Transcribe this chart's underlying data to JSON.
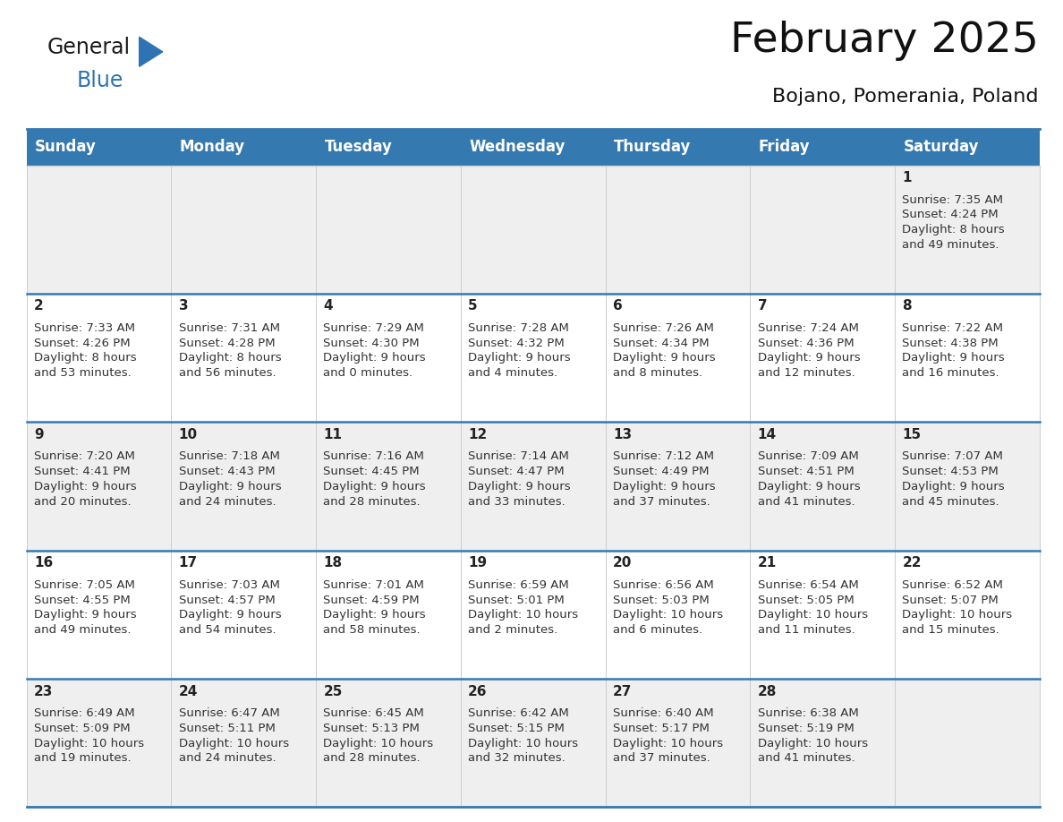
{
  "title": "February 2025",
  "subtitle": "Bojano, Pomerania, Poland",
  "days_of_week": [
    "Sunday",
    "Monday",
    "Tuesday",
    "Wednesday",
    "Thursday",
    "Friday",
    "Saturday"
  ],
  "header_bg": "#3579B1",
  "header_text_color": "#FFFFFF",
  "row_bg_odd": "#EFEFEF",
  "row_bg_even": "#FFFFFF",
  "cell_text_color": "#333333",
  "day_num_color": "#222222",
  "separator_color": "#3579B1",
  "calendar": [
    [
      null,
      null,
      null,
      null,
      null,
      null,
      {
        "day": "1",
        "sunrise": "7:35 AM",
        "sunset": "4:24 PM",
        "daylight_h": "8 hours",
        "daylight_m": "49 minutes."
      }
    ],
    [
      {
        "day": "2",
        "sunrise": "7:33 AM",
        "sunset": "4:26 PM",
        "daylight_h": "8 hours",
        "daylight_m": "53 minutes."
      },
      {
        "day": "3",
        "sunrise": "7:31 AM",
        "sunset": "4:28 PM",
        "daylight_h": "8 hours",
        "daylight_m": "56 minutes."
      },
      {
        "day": "4",
        "sunrise": "7:29 AM",
        "sunset": "4:30 PM",
        "daylight_h": "9 hours",
        "daylight_m": "0 minutes."
      },
      {
        "day": "5",
        "sunrise": "7:28 AM",
        "sunset": "4:32 PM",
        "daylight_h": "9 hours",
        "daylight_m": "4 minutes."
      },
      {
        "day": "6",
        "sunrise": "7:26 AM",
        "sunset": "4:34 PM",
        "daylight_h": "9 hours",
        "daylight_m": "8 minutes."
      },
      {
        "day": "7",
        "sunrise": "7:24 AM",
        "sunset": "4:36 PM",
        "daylight_h": "9 hours",
        "daylight_m": "12 minutes."
      },
      {
        "day": "8",
        "sunrise": "7:22 AM",
        "sunset": "4:38 PM",
        "daylight_h": "9 hours",
        "daylight_m": "16 minutes."
      }
    ],
    [
      {
        "day": "9",
        "sunrise": "7:20 AM",
        "sunset": "4:41 PM",
        "daylight_h": "9 hours",
        "daylight_m": "20 minutes."
      },
      {
        "day": "10",
        "sunrise": "7:18 AM",
        "sunset": "4:43 PM",
        "daylight_h": "9 hours",
        "daylight_m": "24 minutes."
      },
      {
        "day": "11",
        "sunrise": "7:16 AM",
        "sunset": "4:45 PM",
        "daylight_h": "9 hours",
        "daylight_m": "28 minutes."
      },
      {
        "day": "12",
        "sunrise": "7:14 AM",
        "sunset": "4:47 PM",
        "daylight_h": "9 hours",
        "daylight_m": "33 minutes."
      },
      {
        "day": "13",
        "sunrise": "7:12 AM",
        "sunset": "4:49 PM",
        "daylight_h": "9 hours",
        "daylight_m": "37 minutes."
      },
      {
        "day": "14",
        "sunrise": "7:09 AM",
        "sunset": "4:51 PM",
        "daylight_h": "9 hours",
        "daylight_m": "41 minutes."
      },
      {
        "day": "15",
        "sunrise": "7:07 AM",
        "sunset": "4:53 PM",
        "daylight_h": "9 hours",
        "daylight_m": "45 minutes."
      }
    ],
    [
      {
        "day": "16",
        "sunrise": "7:05 AM",
        "sunset": "4:55 PM",
        "daylight_h": "9 hours",
        "daylight_m": "49 minutes."
      },
      {
        "day": "17",
        "sunrise": "7:03 AM",
        "sunset": "4:57 PM",
        "daylight_h": "9 hours",
        "daylight_m": "54 minutes."
      },
      {
        "day": "18",
        "sunrise": "7:01 AM",
        "sunset": "4:59 PM",
        "daylight_h": "9 hours",
        "daylight_m": "58 minutes."
      },
      {
        "day": "19",
        "sunrise": "6:59 AM",
        "sunset": "5:01 PM",
        "daylight_h": "10 hours",
        "daylight_m": "2 minutes."
      },
      {
        "day": "20",
        "sunrise": "6:56 AM",
        "sunset": "5:03 PM",
        "daylight_h": "10 hours",
        "daylight_m": "6 minutes."
      },
      {
        "day": "21",
        "sunrise": "6:54 AM",
        "sunset": "5:05 PM",
        "daylight_h": "10 hours",
        "daylight_m": "11 minutes."
      },
      {
        "day": "22",
        "sunrise": "6:52 AM",
        "sunset": "5:07 PM",
        "daylight_h": "10 hours",
        "daylight_m": "15 minutes."
      }
    ],
    [
      {
        "day": "23",
        "sunrise": "6:49 AM",
        "sunset": "5:09 PM",
        "daylight_h": "10 hours",
        "daylight_m": "19 minutes."
      },
      {
        "day": "24",
        "sunrise": "6:47 AM",
        "sunset": "5:11 PM",
        "daylight_h": "10 hours",
        "daylight_m": "24 minutes."
      },
      {
        "day": "25",
        "sunrise": "6:45 AM",
        "sunset": "5:13 PM",
        "daylight_h": "10 hours",
        "daylight_m": "28 minutes."
      },
      {
        "day": "26",
        "sunrise": "6:42 AM",
        "sunset": "5:15 PM",
        "daylight_h": "10 hours",
        "daylight_m": "32 minutes."
      },
      {
        "day": "27",
        "sunrise": "6:40 AM",
        "sunset": "5:17 PM",
        "daylight_h": "10 hours",
        "daylight_m": "37 minutes."
      },
      {
        "day": "28",
        "sunrise": "6:38 AM",
        "sunset": "5:19 PM",
        "daylight_h": "10 hours",
        "daylight_m": "41 minutes."
      },
      null
    ]
  ],
  "logo_text1": "General",
  "logo_text2": "Blue",
  "logo_color1": "#1a1a1a",
  "logo_color2": "#2E74B5",
  "logo_triangle_color": "#2E74B5",
  "fig_width": 11.88,
  "fig_height": 9.18,
  "dpi": 100
}
